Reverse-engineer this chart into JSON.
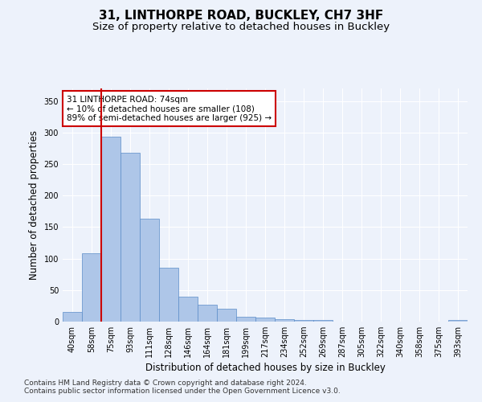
{
  "title": "31, LINTHORPE ROAD, BUCKLEY, CH7 3HF",
  "subtitle": "Size of property relative to detached houses in Buckley",
  "xlabel": "Distribution of detached houses by size in Buckley",
  "ylabel": "Number of detached properties",
  "bins": [
    "40sqm",
    "58sqm",
    "75sqm",
    "93sqm",
    "111sqm",
    "128sqm",
    "146sqm",
    "164sqm",
    "181sqm",
    "199sqm",
    "217sqm",
    "234sqm",
    "252sqm",
    "269sqm",
    "287sqm",
    "305sqm",
    "322sqm",
    "340sqm",
    "358sqm",
    "375sqm",
    "393sqm"
  ],
  "values": [
    15,
    108,
    293,
    268,
    163,
    85,
    40,
    27,
    20,
    8,
    6,
    4,
    3,
    3,
    0,
    0,
    0,
    0,
    0,
    0,
    3
  ],
  "bar_color": "#aec6e8",
  "bar_edge_color": "#5b8cc8",
  "red_line_x": 2,
  "annotation_text": "31 LINTHORPE ROAD: 74sqm\n← 10% of detached houses are smaller (108)\n89% of semi-detached houses are larger (925) →",
  "annotation_box_color": "#ffffff",
  "annotation_box_edge": "#cc0000",
  "red_line_color": "#cc0000",
  "ylim": [
    0,
    370
  ],
  "yticks": [
    0,
    50,
    100,
    150,
    200,
    250,
    300,
    350
  ],
  "footer1": "Contains HM Land Registry data © Crown copyright and database right 2024.",
  "footer2": "Contains public sector information licensed under the Open Government Licence v3.0.",
  "background_color": "#edf2fb",
  "grid_color": "#ffffff",
  "title_fontsize": 11,
  "subtitle_fontsize": 9.5,
  "axis_label_fontsize": 8.5,
  "tick_fontsize": 7,
  "footer_fontsize": 6.5,
  "annotation_fontsize": 7.5
}
